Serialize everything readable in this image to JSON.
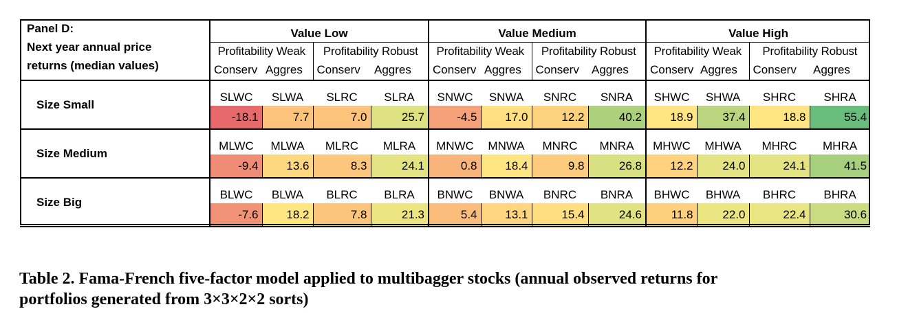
{
  "table": {
    "panel_title": "Panel D:",
    "panel_subtitle_line1": "Next year annual price",
    "panel_subtitle_line2": "returns (median values)",
    "value_groups": [
      "Value Low",
      "Value Medium",
      "Value High"
    ],
    "profitability_groups": [
      "Profitability Weak",
      "Profitability Robust",
      "Profitability Weak",
      "Profitability Robust",
      "Profitability Weak",
      "Profitability Robust"
    ],
    "investment_labels": [
      "Conserv",
      "Aggres",
      "Conserv",
      "Aggres",
      "Conserv",
      "Aggres",
      "Conserv",
      "Aggres",
      "Conserv",
      "Aggres",
      "Conserv",
      "Aggres"
    ],
    "rows": [
      {
        "label": "Size Small",
        "codes": [
          "SLWC",
          "SLWA",
          "SLRC",
          "SLRA",
          "SNWC",
          "SNWA",
          "SNRC",
          "SNRA",
          "SHWC",
          "SHWA",
          "SHRC",
          "SHRA"
        ],
        "values": [
          "-18.1",
          "7.7",
          "7.0",
          "25.7",
          "-4.5",
          "17.0",
          "12.2",
          "40.2",
          "18.9",
          "37.4",
          "18.8",
          "55.4"
        ],
        "colors": [
          "#e8696b",
          "#fbc37c",
          "#fbc37c",
          "#dfe283",
          "#f5a179",
          "#fedf81",
          "#fcd27f",
          "#acd07e",
          "#ffe682",
          "#bbd47f",
          "#ffe682",
          "#68bd7c"
        ]
      },
      {
        "label": "Size Medium",
        "codes": [
          "MLWC",
          "MLWA",
          "MLRC",
          "MLRA",
          "MNWC",
          "MNWA",
          "MNRC",
          "MNRA",
          "MHWC",
          "MHWA",
          "MHRC",
          "MHRA"
        ],
        "values": [
          "-9.4",
          "13.6",
          "8.3",
          "24.1",
          "0.8",
          "18.4",
          "9.8",
          "26.8",
          "12.2",
          "24.0",
          "24.1",
          "41.5"
        ],
        "colors": [
          "#f08c75",
          "#fed880",
          "#fcc77d",
          "#e3e383",
          "#f8b47b",
          "#ffe682",
          "#fccb7e",
          "#d9e082",
          "#fed27f",
          "#e3e383",
          "#e3e383",
          "#a6cf7e"
        ]
      },
      {
        "label": "Size Big",
        "codes": [
          "BLWC",
          "BLWA",
          "BLRC",
          "BLRA",
          "BNWC",
          "BNWA",
          "BNRC",
          "BNRA",
          "BHWC",
          "BHWA",
          "BHRC",
          "BHRA"
        ],
        "values": [
          "-7.6",
          "18.2",
          "7.8",
          "21.3",
          "5.4",
          "13.1",
          "15.4",
          "24.6",
          "11.8",
          "22.0",
          "22.4",
          "30.6"
        ],
        "colors": [
          "#f09276",
          "#ffe682",
          "#fcc57c",
          "#ece582",
          "#fbbd7b",
          "#fed580",
          "#fede81",
          "#e0e283",
          "#fdd07f",
          "#ebe582",
          "#e9e582",
          "#cadb81"
        ]
      }
    ]
  },
  "caption": {
    "line1": "Table 2.  Fama-French five-factor model applied to multibagger stocks (annual observed returns for",
    "line2": "portfolios generated from 3×3×2×2 sorts)"
  }
}
